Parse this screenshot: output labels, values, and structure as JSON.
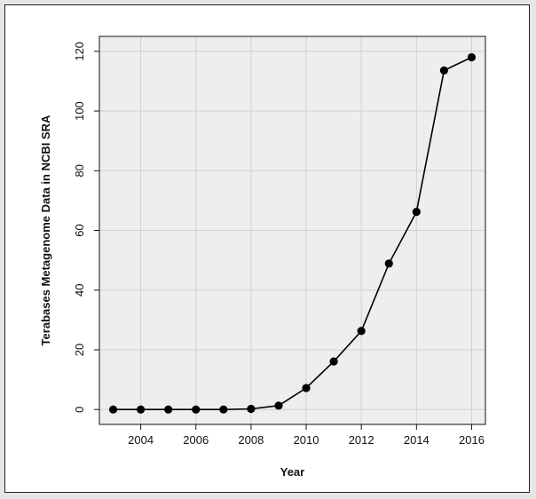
{
  "chart_data": {
    "type": "line",
    "title": "",
    "xlabel": "Year",
    "ylabel": "Terabases Metagenome Data in NCBI SRA",
    "x": [
      2003,
      2004,
      2005,
      2006,
      2007,
      2008,
      2009,
      2010,
      2011,
      2012,
      2013,
      2014,
      2015,
      2016
    ],
    "series": [
      {
        "values": [
          0,
          0,
          0,
          0,
          0,
          0.2,
          1.3,
          7.2,
          16.1,
          26.3,
          48.9,
          66.2,
          113.6,
          118.0
        ]
      }
    ],
    "xlim": [
      2002.5,
      2016.5
    ],
    "ylim": [
      -5,
      125
    ],
    "xticks": [
      "2004",
      "2006",
      "2008",
      "2010",
      "2012",
      "2014",
      "2016"
    ],
    "yticks": [
      "0",
      "20",
      "40",
      "60",
      "80",
      "100",
      "120"
    ],
    "grid": true,
    "legend": "none",
    "colors": {
      "line": "#000000",
      "marker": "#000000",
      "panel": "#eeeeee",
      "grid": "#d0d0d0"
    }
  }
}
